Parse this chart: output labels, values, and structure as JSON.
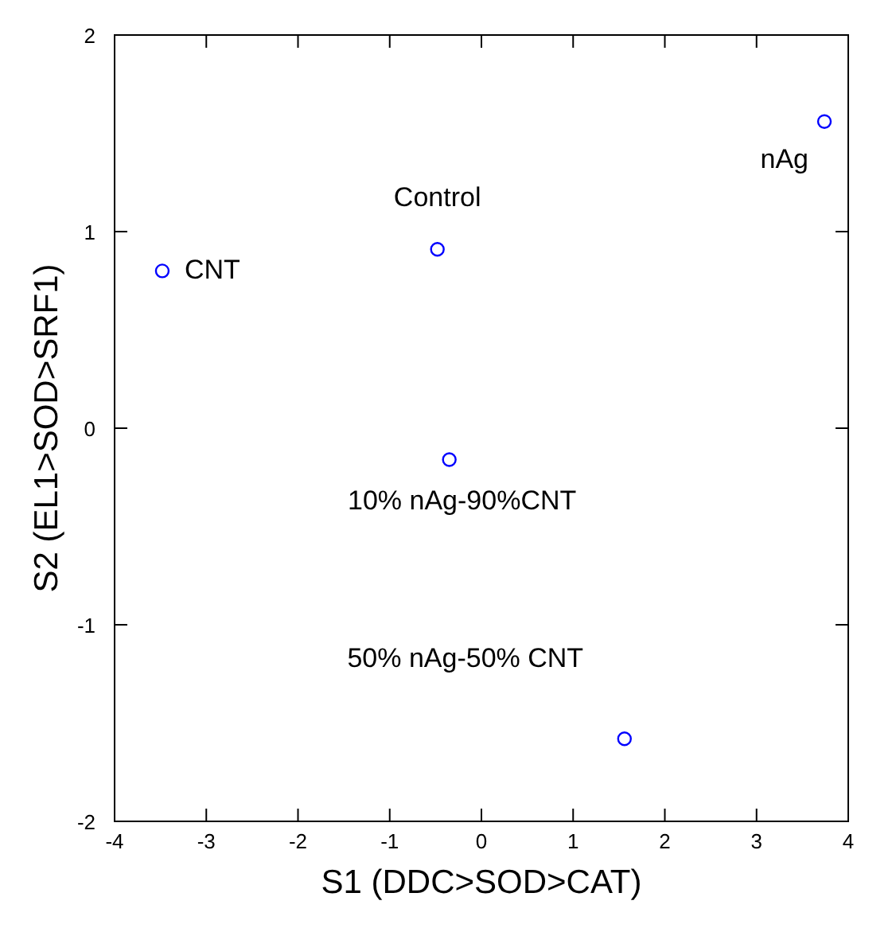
{
  "chart_data": {
    "type": "scatter",
    "xlabel": "S1 (DDC>SOD>CAT)",
    "ylabel": "S2 (EL1>SOD>SRF1)",
    "x": [
      -3.48,
      -0.48,
      3.74,
      -0.35,
      1.56
    ],
    "series": [
      {
        "color": "#0000ff",
        "values": [
          0.8,
          0.91,
          1.56,
          -0.16,
          -1.58
        ]
      }
    ],
    "marker": "circle",
    "xlim": [
      -4,
      4
    ],
    "ylim": [
      -2,
      2
    ],
    "xticks": [
      -4,
      -3,
      -2,
      -1,
      0,
      1,
      2,
      3,
      4
    ],
    "yticks": [
      -2,
      -1,
      0,
      1,
      2
    ],
    "annotations": [
      {
        "text": "CNT",
        "x": -3.48,
        "y": 0.8
      },
      {
        "text": "Control",
        "x": -0.48,
        "y": 0.91
      },
      {
        "text": "nAg",
        "x": 3.74,
        "y": 1.56
      },
      {
        "text": "10% nAg-90%CNT",
        "x": -0.35,
        "y": -0.16
      },
      {
        "text": "50% nAg-50% CNT",
        "x": 1.56,
        "y": -1.58
      }
    ]
  }
}
